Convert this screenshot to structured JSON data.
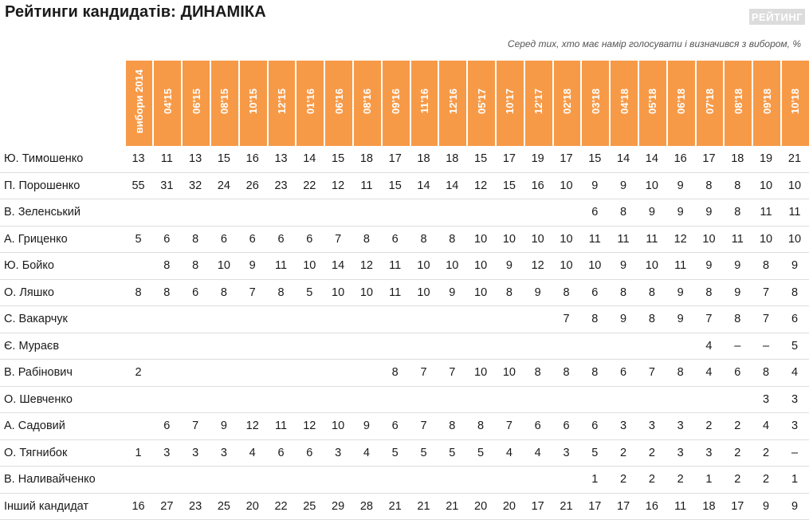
{
  "header": {
    "title": "Рейтинги кандидатів: ДИНАМІКА",
    "logo": "РЕЙТИНГ",
    "subtitle": "Серед тих, хто має намір голосувати і визначився з вибором, %"
  },
  "chart_data": {
    "type": "table",
    "columns": [
      "вибори 2014",
      "04'15",
      "06'15",
      "08'15",
      "10'15",
      "12'15",
      "01'16",
      "06'16",
      "08'16",
      "09'16",
      "11'16",
      "12'16",
      "05'17",
      "10'17",
      "12'17",
      "02'18",
      "03'18",
      "04'18",
      "05'18",
      "06'18",
      "07'18",
      "08'18",
      "09'18",
      "10'18"
    ],
    "rows": [
      {
        "name": "Ю. Тимошенко",
        "values": [
          "13",
          "11",
          "13",
          "15",
          "16",
          "13",
          "14",
          "15",
          "18",
          "17",
          "18",
          "18",
          "15",
          "17",
          "19",
          "17",
          "15",
          "14",
          "14",
          "16",
          "17",
          "18",
          "19",
          "21"
        ]
      },
      {
        "name": "П. Порошенко",
        "values": [
          "55",
          "31",
          "32",
          "24",
          "26",
          "23",
          "22",
          "12",
          "11",
          "15",
          "14",
          "14",
          "12",
          "15",
          "16",
          "10",
          "9",
          "9",
          "10",
          "9",
          "8",
          "8",
          "10",
          "10"
        ]
      },
      {
        "name": "В. Зеленський",
        "values": [
          "",
          "",
          "",
          "",
          "",
          "",
          "",
          "",
          "",
          "",
          "",
          "",
          "",
          "",
          "",
          "",
          "6",
          "8",
          "9",
          "9",
          "9",
          "8",
          "11",
          "11"
        ]
      },
      {
        "name": "А. Гриценко",
        "values": [
          "5",
          "6",
          "8",
          "6",
          "6",
          "6",
          "6",
          "7",
          "8",
          "6",
          "8",
          "8",
          "10",
          "10",
          "10",
          "10",
          "11",
          "11",
          "11",
          "12",
          "10",
          "11",
          "10",
          "10"
        ]
      },
      {
        "name": "Ю. Бойко",
        "values": [
          "",
          "8",
          "8",
          "10",
          "9",
          "11",
          "10",
          "14",
          "12",
          "11",
          "10",
          "10",
          "10",
          "9",
          "12",
          "10",
          "10",
          "9",
          "10",
          "11",
          "9",
          "9",
          "8",
          "9"
        ]
      },
      {
        "name": "О. Ляшко",
        "values": [
          "8",
          "8",
          "6",
          "8",
          "7",
          "8",
          "5",
          "10",
          "10",
          "11",
          "10",
          "9",
          "10",
          "8",
          "9",
          "8",
          "6",
          "8",
          "8",
          "9",
          "8",
          "9",
          "7",
          "8"
        ]
      },
      {
        "name": "С. Вакарчук",
        "values": [
          "",
          "",
          "",
          "",
          "",
          "",
          "",
          "",
          "",
          "",
          "",
          "",
          "",
          "",
          "",
          "7",
          "8",
          "9",
          "8",
          "9",
          "7",
          "8",
          "7",
          "6"
        ]
      },
      {
        "name": "Є. Мураєв",
        "values": [
          "",
          "",
          "",
          "",
          "",
          "",
          "",
          "",
          "",
          "",
          "",
          "",
          "",
          "",
          "",
          "",
          "",
          "",
          "",
          "",
          "4",
          "–",
          "–",
          "5"
        ]
      },
      {
        "name": "В. Рабінович",
        "values": [
          "2",
          "",
          "",
          "",
          "",
          "",
          "",
          "",
          "",
          "8",
          "7",
          "7",
          "10",
          "10",
          "8",
          "8",
          "8",
          "6",
          "7",
          "8",
          "4",
          "6",
          "8",
          "4"
        ]
      },
      {
        "name": "О. Шевченко",
        "values": [
          "",
          "",
          "",
          "",
          "",
          "",
          "",
          "",
          "",
          "",
          "",
          "",
          "",
          "",
          "",
          "",
          "",
          "",
          "",
          "",
          "",
          "",
          "3",
          "3"
        ]
      },
      {
        "name": "А. Садовий",
        "values": [
          "",
          "6",
          "7",
          "9",
          "12",
          "11",
          "12",
          "10",
          "9",
          "6",
          "7",
          "8",
          "8",
          "7",
          "6",
          "6",
          "6",
          "3",
          "3",
          "3",
          "2",
          "2",
          "4",
          "3"
        ]
      },
      {
        "name": "О. Тягнибок",
        "values": [
          "1",
          "3",
          "3",
          "3",
          "4",
          "6",
          "6",
          "3",
          "4",
          "5",
          "5",
          "5",
          "5",
          "4",
          "4",
          "3",
          "5",
          "2",
          "2",
          "3",
          "3",
          "2",
          "2",
          "–"
        ]
      },
      {
        "name": "В. Наливайченко",
        "values": [
          "",
          "",
          "",
          "",
          "",
          "",
          "",
          "",
          "",
          "",
          "",
          "",
          "",
          "",
          "",
          "",
          "1",
          "2",
          "2",
          "2",
          "1",
          "2",
          "2",
          "1"
        ]
      },
      {
        "name": "Інший кандидат",
        "values": [
          "16",
          "27",
          "23",
          "25",
          "20",
          "22",
          "25",
          "29",
          "28",
          "21",
          "21",
          "21",
          "20",
          "20",
          "17",
          "21",
          "17",
          "17",
          "16",
          "11",
          "18",
          "17",
          "9",
          "9"
        ]
      }
    ]
  }
}
